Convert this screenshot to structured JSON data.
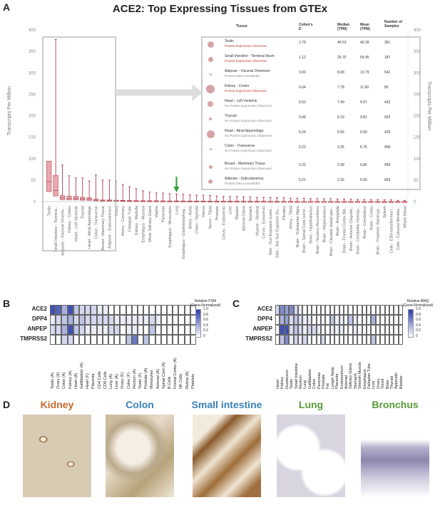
{
  "panelA": {
    "letter": "A",
    "title": "ACE2: Top Expressing Tissues from GTEx",
    "yaxis_label": "Transcripts Per Million",
    "yaxis_label_right": "Transcripts Per Million",
    "yticks": [
      "400",
      "350",
      "300",
      "250",
      "200",
      "150",
      "100",
      "50",
      "0"
    ],
    "table": {
      "headers": {
        "tissue": "Tissue",
        "cohen": "Cohen's D",
        "median": "Median (TPM)",
        "mean": "Mean (TPM)",
        "samples": "Number of Samples"
      },
      "rows": [
        {
          "tissue": "Testis",
          "status": "Protein Expression Observed",
          "cohen": "2.78",
          "median": "46.53",
          "mean": "49.28",
          "samples": "361"
        },
        {
          "tissue": "Small Intestine - Terminal Ileum",
          "status": "Protein Expression Observed",
          "cohen": "1.12",
          "median": "25.75",
          "mean": "59.45",
          "samples": "187"
        },
        {
          "tissue": "Adipose - Visceral Omentum",
          "status": "Protein Data Unavailable",
          "cohen": "0.69",
          "median": "8.68",
          "mean": "13.79",
          "samples": "541"
        },
        {
          "tissue": "Kidney - Cortex",
          "status": "Protein Expression Observed",
          "cohen": "0.64",
          "median": "7.78",
          "mean": "11.60",
          "samples": "85"
        },
        {
          "tissue": "Heart - Left Ventricle",
          "status": "No Protein Expression Observed",
          "cohen": "0.52",
          "median": "7.49",
          "mean": "9.97",
          "samples": "432"
        },
        {
          "tissue": "Thyroid",
          "status": "No Protein Expression Observed",
          "cohen": "0.48",
          "median": "6.33",
          "mean": "9.81",
          "samples": "653"
        },
        {
          "tissue": "Heart - Atrial Appendage",
          "status": "No Protein Expression Observed",
          "cohen": "0.24",
          "median": "5.55",
          "mean": "6.50",
          "samples": "429"
        },
        {
          "tissue": "Colon - Transverse",
          "status": "No Protein Expression Observed",
          "cohen": "0.23",
          "median": "3.35",
          "mean": "6.75",
          "samples": "406"
        },
        {
          "tissue": "Breast - Mammary Tissue",
          "status": "No Protein Expression Observed",
          "cohen": "0.22",
          "median": "2.38",
          "mean": "6.86",
          "samples": "459"
        },
        {
          "tissue": "Adipose - Subcutaneous",
          "status": "Protein Data Unavailable",
          "cohen": "0.21",
          "median": "2.32",
          "mean": "6.50",
          "samples": "663"
        }
      ]
    },
    "colors": {
      "box": "#e7a9ad",
      "whisker": "#a8283a",
      "frame": "#bbbbbb",
      "arrow": "#2e9e3a",
      "observed": "#c0392b",
      "unobserved": "#888888"
    }
  },
  "chart_data": {
    "type": "box",
    "ylabel": "Transcripts Per Million",
    "ylim": [
      0,
      400
    ],
    "categories": [
      "Testis",
      "Small Intestine - Termina...",
      "Adipose - Visceral Omentu...",
      "Kidney - Cortex",
      "Heart - Left Ventricle",
      "Thyroid",
      "Heart - Atrial Appendage",
      "Colon - Transverse",
      "Breast - Mammary Tissue",
      "Adipose - Subcutaneous",
      "Ovary",
      "Artery - Coronary",
      "Fallopian Tube",
      "Kidney - Medulla",
      "Esophagus - Mucosa",
      "Minor Salivary Gland",
      "Vagina",
      "Pancreas",
      "Esophagus - Muscularis",
      "Lung",
      "Esophagus - Gastroesophag...",
      "Artery - Aorta",
      "Colon - Sigmoid",
      "Uterus",
      "Nerve - Tibial",
      "Prostate",
      "Cervix - Endocervix",
      "Liver",
      "Bladder",
      "Adrenal Gland",
      "Stomach",
      "Muscle - Skeletal",
      "Cervix - Ectocervix",
      "Skin - Sun Exposed (Lowe...",
      "Skin - Not Sun Exposed (Su...",
      "Pituitary",
      "Artery - Tibial",
      "Brain - Substantia Nigra",
      "Brain - Spinal Cord (cervi...",
      "Brain - Hypothalamus",
      "Brain - Nucleus Accumbens",
      "Brain - Hippocampus",
      "Brain - Caudate (basal gan...",
      "Brain - Amygdala",
      "Brain - Frontal Cortex BA...",
      "Brain - Anterior Cingulat...",
      "Brain - Cerebellar Hemisp...",
      "Brain - Cerebellum",
      "Brain - Cortex",
      "Brain - Putamen (basal ga...",
      "Spleen",
      "Cells - EBV-transformed l...",
      "Cells - Cultured fibrobla...",
      "Whole Blood"
    ],
    "medians": [
      46.5,
      25.8,
      8.7,
      7.8,
      7.5,
      6.3,
      5.6,
      3.4,
      2.4,
      2.3,
      2.0,
      1.8,
      1.6,
      1.5,
      1.4,
      1.3,
      1.2,
      1.1,
      1.0,
      1.0,
      0.9,
      0.9,
      0.8,
      0.8,
      0.7,
      0.7,
      0.6,
      0.6,
      0.6,
      0.5,
      0.5,
      0.5,
      0.5,
      0.4,
      0.4,
      0.4,
      0.4,
      0.3,
      0.3,
      0.3,
      0.3,
      0.3,
      0.3,
      0.3,
      0.2,
      0.2,
      0.2,
      0.2,
      0.2,
      0.2,
      0.1,
      0.1,
      0.1,
      0.1
    ],
    "maxes": [
      85,
      378,
      85,
      60,
      55,
      55,
      48,
      62,
      50,
      50,
      48,
      40,
      35,
      30,
      25,
      22,
      20,
      20,
      18,
      18,
      17,
      16,
      15,
      15,
      14,
      13,
      12,
      12,
      12,
      11,
      11,
      10,
      10,
      9,
      9,
      9,
      8,
      8,
      8,
      7,
      7,
      7,
      7,
      6,
      6,
      6,
      5,
      5,
      5,
      5,
      4,
      4,
      3,
      3
    ]
  },
  "panelB": {
    "letter": "B",
    "genes": [
      "ACE2",
      "DPP4",
      "ANPEP",
      "TMPRSS2"
    ],
    "columns": [
      "Testis (A)",
      "Ovary (A)",
      "Colon (A)",
      "Kidney (A)",
      "Heart (A)",
      "Gallbladder (A)",
      "Heart (F)",
      "Placenta",
      "CD4 Cells",
      "CD8 Cells",
      "Lung (A)",
      "Liver (A)",
      "Ovary (F)",
      "Colon (F)",
      "Rectum (A)",
      "Testis (F)",
      "Prostate (A)",
      "Monocytes",
      "Adrenal (A)",
      "Spinal Cord (A)",
      "B Cells",
      "Frontal Cortex (A)",
      "NK Cells",
      "Retina (A)",
      "Platelets"
    ],
    "legend_title": "Relative PSM (Gene-Normalized)",
    "legend_ticks": [
      "1.0",
      "0.8",
      "0.6",
      "0.4",
      "0.2",
      "0"
    ],
    "values": [
      [
        0.9,
        0.8,
        0.4,
        0.9,
        0.3,
        0.2,
        0.2,
        0.2,
        0.1,
        0.1,
        0,
        0,
        0,
        0,
        0,
        0,
        0,
        0,
        0,
        0,
        0,
        0,
        0,
        0,
        0
      ],
      [
        0.1,
        0.2,
        0.3,
        0.4,
        0.2,
        0.3,
        0.2,
        0.2,
        0.2,
        0.2,
        0.2,
        0.1,
        0.1,
        0.1,
        0.1,
        0.1,
        0.1,
        0.2,
        0.1,
        0,
        0,
        0,
        0,
        0,
        0
      ],
      [
        0.2,
        0.2,
        0.4,
        0.9,
        0.3,
        0.2,
        0.1,
        0.1,
        0.1,
        0.1,
        0.2,
        0.2,
        0,
        0.1,
        0.1,
        0,
        0,
        0.3,
        0,
        0,
        0,
        0,
        0,
        0,
        0
      ],
      [
        0,
        0,
        0.2,
        0.2,
        0,
        0,
        0,
        0,
        0,
        0,
        0,
        0,
        0,
        0.3,
        0.7,
        0,
        0.3,
        0,
        0,
        0,
        0,
        0,
        0,
        0,
        0
      ]
    ]
  },
  "panelC": {
    "letter": "C",
    "genes": [
      "ACE2",
      "DPP4",
      "ANPEP",
      "TMPRSS2"
    ],
    "columns": [
      "Heart",
      "Kidney",
      "Duodenum",
      "Testis",
      "Small Intestine",
      "Rectum",
      "Lung",
      "Gallbladder",
      "Colon",
      "Pancreas",
      "Prostate",
      "Fat",
      "Lymph Node",
      "Placenta",
      "Endometrium",
      "Adrenal",
      "Salivary Gland",
      "Stomach",
      "Smooth Muscle",
      "Esophagus",
      "Fallopian Tube",
      "Liver",
      "Ovary",
      "Tonsil",
      "Brain",
      "Thyroid",
      "Appendix",
      "Bladder"
    ],
    "legend_title": "Relative iBAQ (Gene-Normalized)",
    "legend_ticks": [
      "1.0",
      "0.8",
      "0.6",
      "0.4",
      "0.2",
      "0"
    ],
    "values": [
      [
        0.2,
        0.6,
        0.5,
        0.6,
        0.2,
        0.1,
        0,
        0,
        0,
        0,
        0,
        0,
        0,
        0,
        0,
        0,
        0,
        0,
        0,
        0,
        0,
        0,
        0,
        0,
        0,
        0,
        0,
        0
      ],
      [
        0,
        0.4,
        0.5,
        0.2,
        0.3,
        0.2,
        0.1,
        0.1,
        0,
        0,
        0,
        0,
        0.3,
        0.1,
        0.1,
        0,
        0.3,
        0.1,
        0,
        0,
        0,
        0.4,
        0,
        0,
        0,
        0,
        0,
        0
      ],
      [
        0,
        0.9,
        0.9,
        0.2,
        0.3,
        0.2,
        0.1,
        0.2,
        0.2,
        0.1,
        0,
        0,
        0.1,
        0.1,
        0.1,
        0,
        0,
        0.1,
        0,
        0,
        0,
        0,
        0,
        0,
        0,
        0,
        0,
        0
      ],
      [
        0,
        0.3,
        0.6,
        0.1,
        0.2,
        0.1,
        0.2,
        0,
        0,
        0,
        0.2,
        0,
        0,
        0,
        0,
        0,
        0,
        0,
        0,
        0,
        0,
        0.3,
        0,
        0,
        0,
        0,
        0,
        0
      ]
    ]
  },
  "panelD": {
    "letter": "D",
    "tissues": [
      {
        "name": "Kidney",
        "color": "#c8682a"
      },
      {
        "name": "Colon",
        "color": "#3a82b8"
      },
      {
        "name": "Small intestine",
        "color": "#3a82b8"
      },
      {
        "name": "Lung",
        "color": "#5a9a3a"
      },
      {
        "name": "Bronchus",
        "color": "#5a9a3a"
      }
    ]
  }
}
